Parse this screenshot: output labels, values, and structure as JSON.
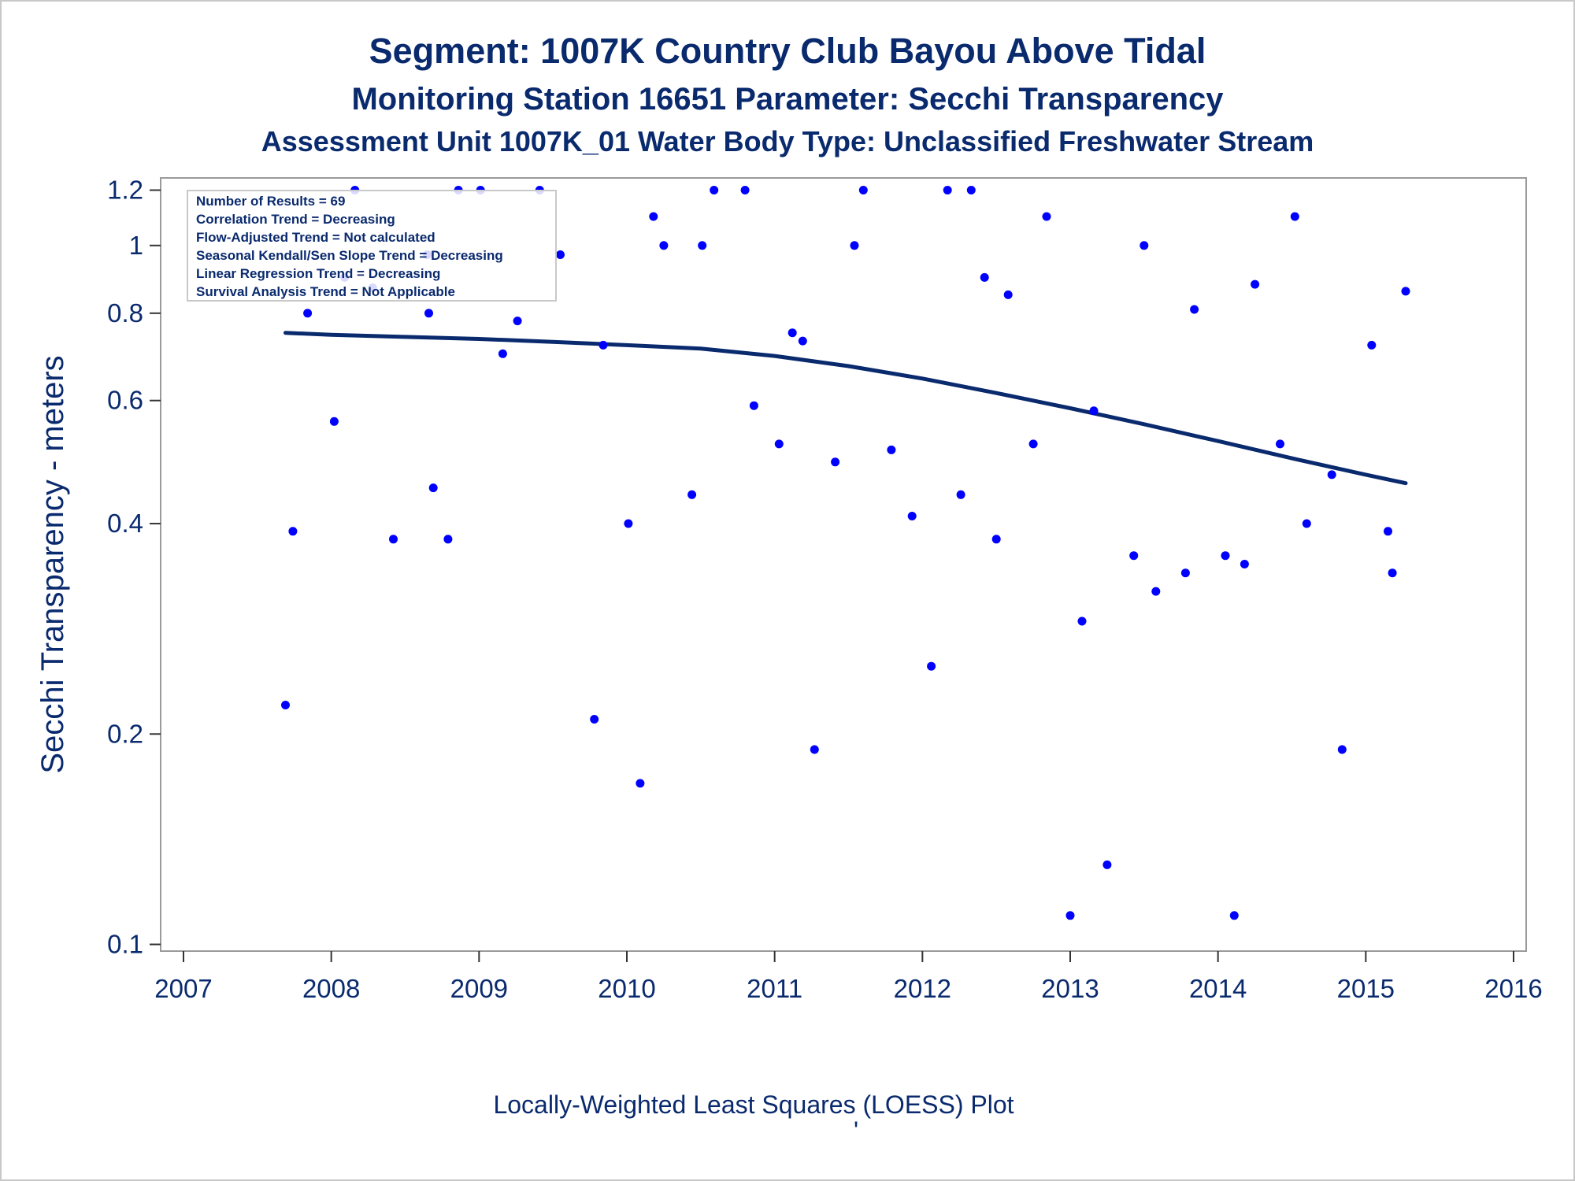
{
  "titles": {
    "line1": "Segment: 1007K  Country Club Bayou Above Tidal",
    "line2": "Monitoring Station 16651 Parameter: Secchi Transparency",
    "line3": "Assessment Unit 1007K_01   Water Body Type: Unclassified Freshwater Stream"
  },
  "footnote": "Locally-Weighted Least Squares (LOESS) Plot",
  "footnote_mark": "'",
  "stats_box": [
    "Number of Results = 69",
    "Correlation Trend = Decreasing",
    "Flow-Adjusted Trend = Not calculated",
    "Seasonal Kendall/Sen Slope Trend = Decreasing",
    "Linear Regression Trend = Decreasing",
    "Survival Analysis Trend = Not Applicable"
  ],
  "colors": {
    "text": "#0a2a6e",
    "points": "#0000ff",
    "loess_line": "#0a2a6e",
    "frame": "#9a9a9a"
  },
  "chart_data": {
    "type": "scatter",
    "xlabel": "",
    "ylabel": "Secchi Transparency - meters",
    "y_scale": "log",
    "xlim": [
      2007,
      2016
    ],
    "ylim": [
      0.1,
      1.25
    ],
    "x_ticks": [
      2007,
      2008,
      2009,
      2010,
      2011,
      2012,
      2013,
      2014,
      2015,
      2016
    ],
    "x_tick_labels": [
      "2007",
      "2008",
      "2009",
      "2010",
      "2011",
      "2012",
      "2013",
      "2014",
      "2015",
      "2016"
    ],
    "y_ticks": [
      0.1,
      0.2,
      0.4,
      0.6,
      0.8,
      1,
      1.2
    ],
    "y_tick_labels": [
      "0.1",
      "0.2",
      "0.4",
      "0.6",
      "0.8",
      "1",
      "1.2"
    ],
    "grid": false,
    "legend": "none",
    "series": [
      {
        "type": "scatter",
        "points": [
          [
            2007.69,
            0.22
          ],
          [
            2007.74,
            0.39
          ],
          [
            2007.84,
            0.8
          ],
          [
            2008.02,
            0.56
          ],
          [
            2008.09,
            0.9
          ],
          [
            2008.16,
            1.2
          ],
          [
            2008.28,
            0.87
          ],
          [
            2008.42,
            0.38
          ],
          [
            2008.65,
            0.97
          ],
          [
            2008.66,
            0.8
          ],
          [
            2008.69,
            0.45
          ],
          [
            2008.79,
            0.38
          ],
          [
            2008.86,
            1.2
          ],
          [
            2009.01,
            1.2
          ],
          [
            2009.16,
            0.7
          ],
          [
            2009.26,
            0.78
          ],
          [
            2009.41,
            1.2
          ],
          [
            2009.55,
            0.97
          ],
          [
            2009.78,
            0.21
          ],
          [
            2009.84,
            0.72
          ],
          [
            2010.01,
            0.4
          ],
          [
            2010.09,
            0.17
          ],
          [
            2010.18,
            1.1
          ],
          [
            2010.25,
            1.0
          ],
          [
            2010.44,
            0.44
          ],
          [
            2010.51,
            1.0
          ],
          [
            2010.59,
            1.2
          ],
          [
            2010.8,
            1.2
          ],
          [
            2010.86,
            0.59
          ],
          [
            2011.03,
            0.52
          ],
          [
            2011.12,
            0.75
          ],
          [
            2011.19,
            0.73
          ],
          [
            2011.27,
            0.19
          ],
          [
            2011.41,
            0.49
          ],
          [
            2011.54,
            1.0
          ],
          [
            2011.6,
            1.2
          ],
          [
            2011.79,
            0.51
          ],
          [
            2011.93,
            0.41
          ],
          [
            2012.06,
            0.25
          ],
          [
            2012.17,
            1.2
          ],
          [
            2012.26,
            0.44
          ],
          [
            2012.33,
            1.2
          ],
          [
            2012.42,
            0.9
          ],
          [
            2012.5,
            0.38
          ],
          [
            2012.58,
            0.85
          ],
          [
            2012.75,
            0.52
          ],
          [
            2012.84,
            1.1
          ],
          [
            2013.0,
            0.11
          ],
          [
            2013.08,
            0.29
          ],
          [
            2013.16,
            0.58
          ],
          [
            2013.25,
            0.13
          ],
          [
            2013.43,
            0.36
          ],
          [
            2013.5,
            1.0
          ],
          [
            2013.58,
            0.32
          ],
          [
            2013.78,
            0.34
          ],
          [
            2013.84,
            0.81
          ],
          [
            2014.05,
            0.36
          ],
          [
            2014.11,
            0.11
          ],
          [
            2014.18,
            0.35
          ],
          [
            2014.25,
            0.88
          ],
          [
            2014.42,
            0.52
          ],
          [
            2014.52,
            1.1
          ],
          [
            2014.6,
            0.4
          ],
          [
            2014.77,
            0.47
          ],
          [
            2014.84,
            0.19
          ],
          [
            2015.04,
            0.72
          ],
          [
            2015.15,
            0.39
          ],
          [
            2015.18,
            0.34
          ],
          [
            2015.27,
            0.86
          ]
        ]
      },
      {
        "type": "line",
        "points": [
          [
            2007.69,
            0.75
          ],
          [
            2008.0,
            0.745
          ],
          [
            2008.5,
            0.74
          ],
          [
            2009.0,
            0.735
          ],
          [
            2009.5,
            0.728
          ],
          [
            2010.0,
            0.72
          ],
          [
            2010.5,
            0.712
          ],
          [
            2011.0,
            0.695
          ],
          [
            2011.5,
            0.672
          ],
          [
            2012.0,
            0.645
          ],
          [
            2012.5,
            0.615
          ],
          [
            2013.0,
            0.585
          ],
          [
            2013.5,
            0.555
          ],
          [
            2014.0,
            0.525
          ],
          [
            2014.5,
            0.496
          ],
          [
            2015.0,
            0.47
          ],
          [
            2015.27,
            0.457
          ]
        ]
      }
    ]
  }
}
